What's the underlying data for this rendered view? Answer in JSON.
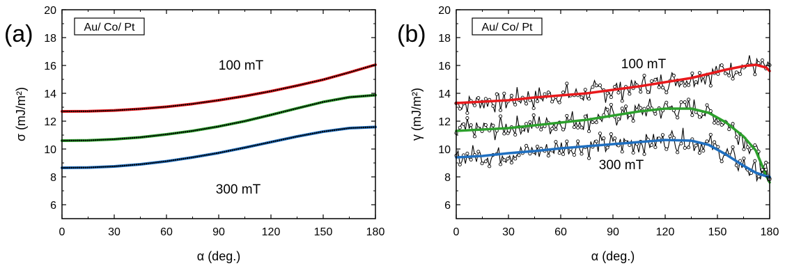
{
  "chart_data": [
    {
      "type": "line",
      "panel_label": "(a)",
      "legend_box": "Au/ Co/ Pt",
      "xlabel": "α (deg.)",
      "ylabel": "σ (mJ/m²)",
      "xlim": [
        0,
        180
      ],
      "ylim": [
        5,
        20
      ],
      "xticks": [
        0,
        30,
        60,
        90,
        120,
        150,
        180
      ],
      "yticks": [
        6,
        8,
        10,
        12,
        14,
        16,
        18,
        20
      ],
      "annotations": [
        "100 mT",
        "300 mT"
      ],
      "grid": false,
      "x": [
        0,
        15,
        30,
        45,
        60,
        75,
        90,
        105,
        120,
        135,
        150,
        165,
        180
      ],
      "series": [
        {
          "color": "#e8191c",
          "values": [
            12.7,
            12.71,
            12.77,
            12.88,
            13.03,
            13.24,
            13.5,
            13.8,
            14.15,
            14.55,
            14.98,
            15.5,
            16.05
          ]
        },
        {
          "color": "#2ca02c",
          "values": [
            10.6,
            10.62,
            10.7,
            10.84,
            11.05,
            11.3,
            11.62,
            12.0,
            12.45,
            12.92,
            13.38,
            13.72,
            13.87
          ]
        },
        {
          "color": "#1f6fc0",
          "values": [
            8.65,
            8.67,
            8.75,
            8.9,
            9.12,
            9.4,
            9.72,
            10.1,
            10.5,
            10.9,
            11.25,
            11.5,
            11.58
          ]
        }
      ]
    },
    {
      "type": "line",
      "panel_label": "(b)",
      "legend_box": "Au/ Co/ Pt",
      "xlabel": "α (deg.)",
      "ylabel": "γ (mJ/m²)",
      "xlim": [
        0,
        180
      ],
      "ylim": [
        5,
        20
      ],
      "xticks": [
        0,
        30,
        60,
        90,
        120,
        150,
        180
      ],
      "yticks": [
        6,
        8,
        10,
        12,
        14,
        16,
        18,
        20
      ],
      "annotations": [
        "100 mT",
        "300 mT"
      ],
      "grid": false,
      "x": [
        0,
        15,
        30,
        45,
        60,
        75,
        90,
        105,
        120,
        135,
        145,
        155,
        165,
        172,
        178,
        180
      ],
      "series": [
        {
          "color": "#e8191c",
          "values": [
            13.3,
            13.4,
            13.5,
            13.7,
            13.85,
            14.0,
            14.25,
            14.5,
            14.8,
            15.1,
            15.4,
            15.7,
            15.95,
            16.05,
            15.85,
            15.6
          ]
        },
        {
          "color": "#2ca02c",
          "values": [
            11.3,
            11.4,
            11.5,
            11.7,
            11.9,
            12.1,
            12.4,
            12.7,
            12.9,
            12.9,
            12.6,
            11.9,
            10.9,
            9.9,
            8.1,
            7.6
          ]
        },
        {
          "color": "#1f6fc0",
          "values": [
            9.4,
            9.5,
            9.7,
            9.85,
            10.05,
            10.2,
            10.35,
            10.5,
            10.65,
            10.6,
            10.3,
            9.6,
            8.8,
            8.3,
            8.05,
            8.0
          ]
        }
      ]
    }
  ]
}
